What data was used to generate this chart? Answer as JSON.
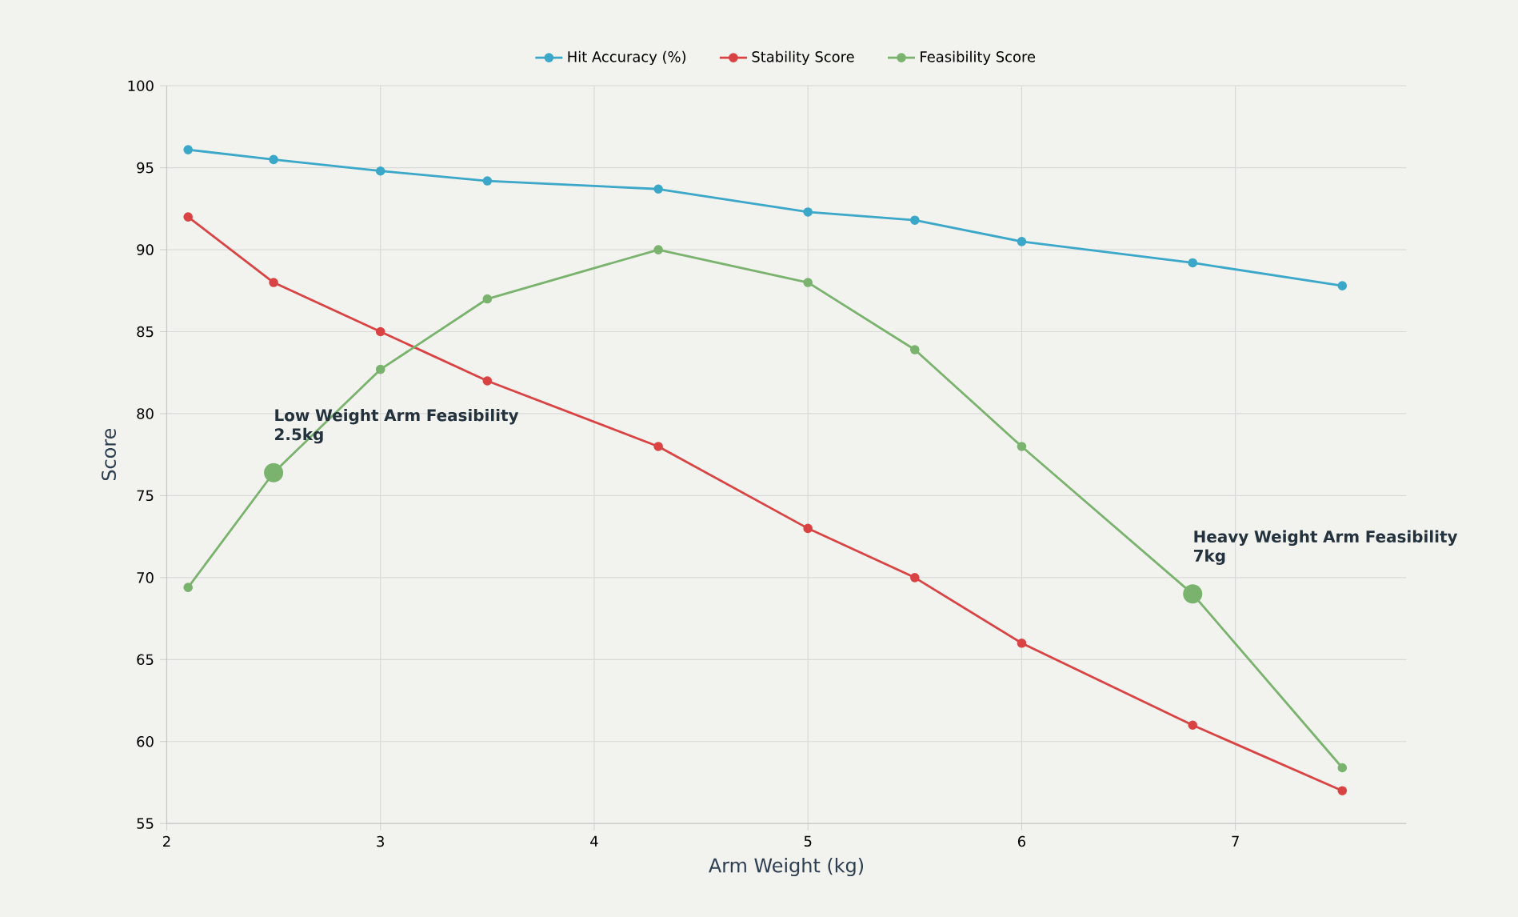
{
  "chart_data": {
    "type": "line",
    "xlabel": "Arm Weight (kg)",
    "ylabel": "Score",
    "x": [
      2.1,
      2.5,
      3,
      3.5,
      4.3,
      5,
      5.5,
      6,
      6.8,
      7.5
    ],
    "series": [
      {
        "name": "Hit Accuracy (%)",
        "color": "#3ba7c9",
        "values": [
          96.1,
          95.5,
          94.8,
          94.2,
          93.7,
          92.3,
          91.8,
          90.5,
          89.2,
          87.8
        ]
      },
      {
        "name": "Stability Score",
        "color": "#d94343",
        "values": [
          92,
          88,
          85,
          82,
          78,
          73,
          70,
          66,
          61,
          57
        ]
      },
      {
        "name": "Feasibility Score",
        "color": "#7ab36e",
        "values": [
          69.4,
          76.4,
          82.7,
          87,
          90,
          88,
          83.9,
          78,
          69,
          58.4
        ]
      }
    ],
    "annotations": [
      {
        "text": "Low Weight Arm Feasibility 2.5kg",
        "x": 2.5,
        "y": 76.4
      },
      {
        "text": "Heavy Weight Arm Feasibility 7kg",
        "x": 6.8,
        "y": 69
      }
    ],
    "xlim": [
      2,
      7.8
    ],
    "xticks": [
      2,
      3,
      4,
      5,
      6,
      7
    ],
    "ylim": [
      55,
      100
    ],
    "yticks": [
      55,
      60,
      65,
      70,
      75,
      80,
      85,
      90,
      95,
      100
    ],
    "grid": true,
    "legend": "top",
    "marker": "circle",
    "line_style": "solid"
  }
}
